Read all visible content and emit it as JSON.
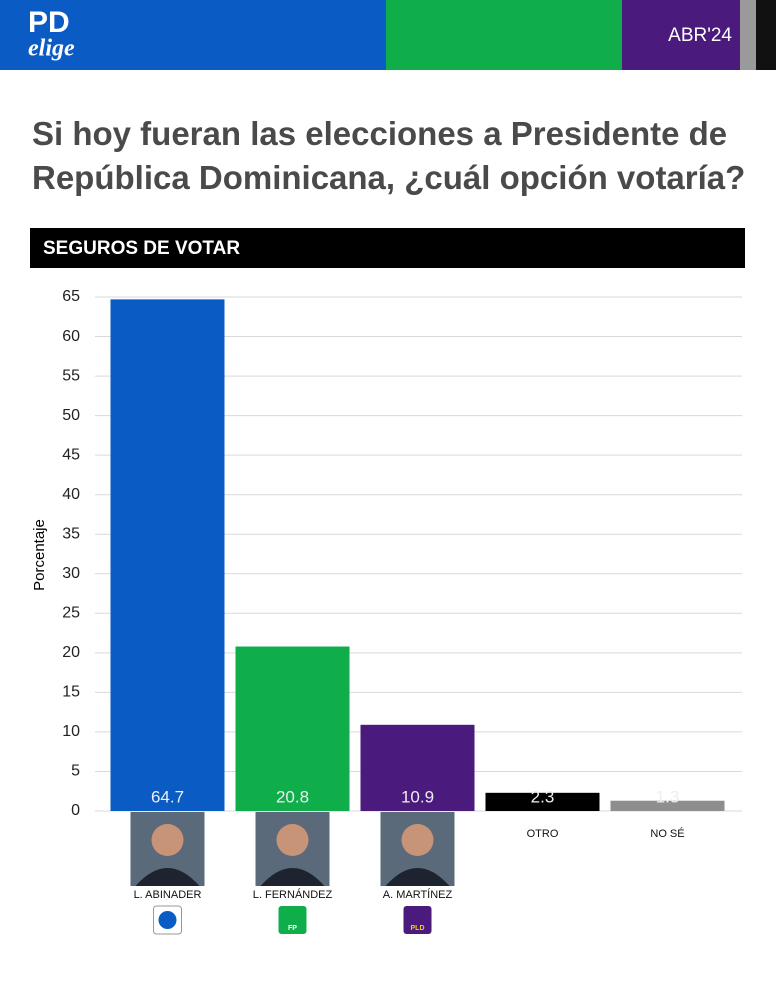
{
  "header": {
    "logo": "PD",
    "logo_sub": "elige",
    "date": "ABR'24"
  },
  "chart_data": {
    "type": "bar",
    "title": "Si hoy fueran las elecciones a Presidente de República Dominicana, ¿cuál opción votaría?",
    "subtitle": "SEGUROS DE VOTAR",
    "y_label": "Porcentaje",
    "categories": [
      "L. ABINADER",
      "L. FERNÁNDEZ",
      "A. MARTÍNEZ",
      "OTRO",
      "NO SÉ"
    ],
    "values": [
      64.7,
      20.8,
      10.9,
      2.3,
      1.3
    ],
    "colors": [
      "#0a5bc4",
      "#0fae4b",
      "#4a1a7d",
      "#000000",
      "#8e8e8e"
    ],
    "party_logo_labels": [
      null,
      "FP",
      "PLD",
      null,
      null
    ],
    "ylim": [
      0,
      65
    ],
    "yticks": [
      0,
      5,
      10,
      15,
      20,
      25,
      30,
      35,
      40,
      45,
      50,
      55,
      60,
      65
    ],
    "grid": true
  }
}
